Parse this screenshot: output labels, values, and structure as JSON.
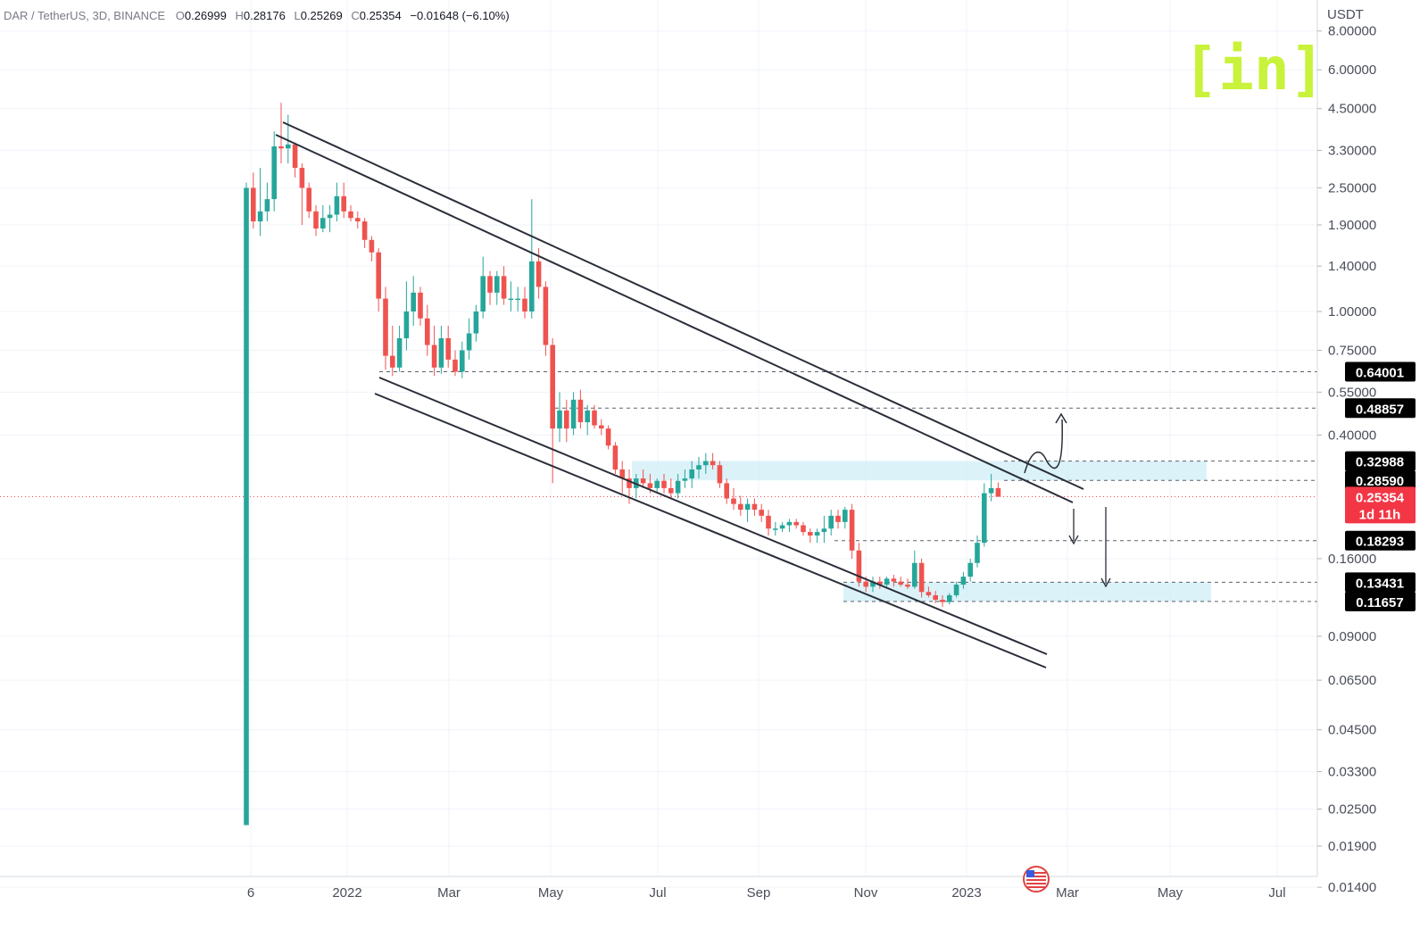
{
  "header": {
    "symbol": "DAR / TetherUS, 3D, BINANCE",
    "o_label": "O",
    "o_value": "0.26999",
    "h_label": "H",
    "h_value": "0.28176",
    "l_label": "L",
    "l_value": "0.25269",
    "c_label": "C",
    "c_value": "0.25354",
    "change": "−0.01648 (−6.10%)"
  },
  "axis": {
    "currency": "USDT"
  },
  "logo": {
    "text": "[in]",
    "color": "#c9f23a"
  },
  "colors": {
    "up": "#26a69a",
    "down": "#ef5350",
    "zone": "#cfeef7",
    "last_price": "#f23645",
    "tag": "#000000"
  },
  "event_icon": "us-flag-event-icon",
  "chart_data": {
    "type": "candlestick",
    "scale": "log",
    "ylim": [
      0.013,
      10
    ],
    "y_ticks": [
      "8.00000",
      "6.00000",
      "4.50000",
      "3.30000",
      "2.50000",
      "1.90000",
      "1.40000",
      "1.00000",
      "0.75000",
      "0.55000",
      "0.40000",
      "0.16000",
      "0.09000",
      "0.06500",
      "0.04500",
      "0.03300",
      "0.02500",
      "0.01900",
      "0.01400"
    ],
    "x_ticks": [
      "6",
      "2022",
      "Mar",
      "May",
      "Jul",
      "Sep",
      "Nov",
      "2023",
      "Mar",
      "May",
      "Jul"
    ],
    "price_tags": [
      {
        "label": "0.64001",
        "value": 0.64001
      },
      {
        "label": "0.48857",
        "value": 0.48857
      },
      {
        "label": "0.32988",
        "value": 0.32988
      },
      {
        "label": "0.28590",
        "value": 0.2859
      },
      {
        "label": "0.18293",
        "value": 0.18293
      },
      {
        "label": "0.13431",
        "value": 0.13431
      },
      {
        "label": "0.11657",
        "value": 0.11657
      }
    ],
    "last_price": {
      "label": "0.25354",
      "countdown": "1d 11h",
      "value": 0.25354
    },
    "candles": [
      {
        "t": 0,
        "o": 0.0222,
        "h": 2.6,
        "l": 0.0222,
        "c": 2.5
      },
      {
        "t": 1,
        "o": 2.5,
        "h": 2.8,
        "l": 1.85,
        "c": 1.95
      },
      {
        "t": 2,
        "o": 1.95,
        "h": 2.9,
        "l": 1.75,
        "c": 2.1
      },
      {
        "t": 3,
        "o": 2.1,
        "h": 2.6,
        "l": 1.95,
        "c": 2.3
      },
      {
        "t": 4,
        "o": 2.3,
        "h": 3.8,
        "l": 2.1,
        "c": 3.4
      },
      {
        "t": 5,
        "o": 3.4,
        "h": 4.7,
        "l": 3.0,
        "c": 3.35
      },
      {
        "t": 6,
        "o": 3.35,
        "h": 4.3,
        "l": 3.0,
        "c": 3.45
      },
      {
        "t": 7,
        "o": 3.45,
        "h": 3.5,
        "l": 2.7,
        "c": 2.9
      },
      {
        "t": 8,
        "o": 2.9,
        "h": 3.0,
        "l": 1.9,
        "c": 2.5
      },
      {
        "t": 9,
        "o": 2.5,
        "h": 2.6,
        "l": 2.0,
        "c": 2.1
      },
      {
        "t": 10,
        "o": 2.1,
        "h": 2.2,
        "l": 1.75,
        "c": 1.85
      },
      {
        "t": 11,
        "o": 1.85,
        "h": 2.2,
        "l": 1.8,
        "c": 2.0
      },
      {
        "t": 12,
        "o": 2.0,
        "h": 2.2,
        "l": 1.8,
        "c": 2.05
      },
      {
        "t": 13,
        "o": 2.05,
        "h": 2.6,
        "l": 1.95,
        "c": 2.35
      },
      {
        "t": 14,
        "o": 2.35,
        "h": 2.6,
        "l": 2.0,
        "c": 2.1
      },
      {
        "t": 15,
        "o": 2.1,
        "h": 2.2,
        "l": 1.95,
        "c": 2.0
      },
      {
        "t": 16,
        "o": 2.0,
        "h": 2.1,
        "l": 1.85,
        "c": 1.95
      },
      {
        "t": 17,
        "o": 1.95,
        "h": 2.0,
        "l": 1.6,
        "c": 1.7
      },
      {
        "t": 18,
        "o": 1.7,
        "h": 1.75,
        "l": 1.45,
        "c": 1.55
      },
      {
        "t": 19,
        "o": 1.55,
        "h": 1.6,
        "l": 1.0,
        "c": 1.1
      },
      {
        "t": 20,
        "o": 1.1,
        "h": 1.2,
        "l": 0.65,
        "c": 0.72
      },
      {
        "t": 21,
        "o": 0.72,
        "h": 0.9,
        "l": 0.62,
        "c": 0.66
      },
      {
        "t": 22,
        "o": 0.66,
        "h": 0.9,
        "l": 0.64,
        "c": 0.82
      },
      {
        "t": 23,
        "o": 0.82,
        "h": 1.25,
        "l": 0.75,
        "c": 1.0
      },
      {
        "t": 24,
        "o": 1.0,
        "h": 1.3,
        "l": 0.9,
        "c": 1.15
      },
      {
        "t": 25,
        "o": 1.15,
        "h": 1.2,
        "l": 0.9,
        "c": 0.95
      },
      {
        "t": 26,
        "o": 0.95,
        "h": 1.05,
        "l": 0.72,
        "c": 0.78
      },
      {
        "t": 27,
        "o": 0.78,
        "h": 0.9,
        "l": 0.62,
        "c": 0.66
      },
      {
        "t": 28,
        "o": 0.66,
        "h": 0.9,
        "l": 0.63,
        "c": 0.82
      },
      {
        "t": 29,
        "o": 0.82,
        "h": 0.9,
        "l": 0.66,
        "c": 0.7
      },
      {
        "t": 30,
        "o": 0.7,
        "h": 0.75,
        "l": 0.62,
        "c": 0.64
      },
      {
        "t": 31,
        "o": 0.64,
        "h": 0.8,
        "l": 0.61,
        "c": 0.75
      },
      {
        "t": 32,
        "o": 0.75,
        "h": 0.95,
        "l": 0.7,
        "c": 0.85
      },
      {
        "t": 33,
        "o": 0.85,
        "h": 1.05,
        "l": 0.8,
        "c": 1.0
      },
      {
        "t": 34,
        "o": 1.0,
        "h": 1.5,
        "l": 0.95,
        "c": 1.3
      },
      {
        "t": 35,
        "o": 1.3,
        "h": 1.35,
        "l": 1.05,
        "c": 1.15
      },
      {
        "t": 36,
        "o": 1.15,
        "h": 1.35,
        "l": 1.05,
        "c": 1.3
      },
      {
        "t": 37,
        "o": 1.3,
        "h": 1.4,
        "l": 1.05,
        "c": 1.1
      },
      {
        "t": 38,
        "o": 1.1,
        "h": 1.25,
        "l": 1.0,
        "c": 1.1
      },
      {
        "t": 39,
        "o": 1.1,
        "h": 1.2,
        "l": 1.0,
        "c": 1.1
      },
      {
        "t": 40,
        "o": 1.1,
        "h": 1.2,
        "l": 0.95,
        "c": 1.0
      },
      {
        "t": 41,
        "o": 1.0,
        "h": 2.3,
        "l": 0.95,
        "c": 1.45
      },
      {
        "t": 42,
        "o": 1.45,
        "h": 1.6,
        "l": 1.1,
        "c": 1.2
      },
      {
        "t": 43,
        "o": 1.2,
        "h": 1.25,
        "l": 0.72,
        "c": 0.78
      },
      {
        "t": 44,
        "o": 0.78,
        "h": 0.82,
        "l": 0.28,
        "c": 0.42
      },
      {
        "t": 45,
        "o": 0.42,
        "h": 0.55,
        "l": 0.38,
        "c": 0.48
      },
      {
        "t": 46,
        "o": 0.48,
        "h": 0.52,
        "l": 0.38,
        "c": 0.42
      },
      {
        "t": 47,
        "o": 0.42,
        "h": 0.55,
        "l": 0.4,
        "c": 0.52
      },
      {
        "t": 48,
        "o": 0.52,
        "h": 0.56,
        "l": 0.42,
        "c": 0.44
      },
      {
        "t": 49,
        "o": 0.44,
        "h": 0.5,
        "l": 0.4,
        "c": 0.48
      },
      {
        "t": 50,
        "o": 0.48,
        "h": 0.5,
        "l": 0.42,
        "c": 0.43
      },
      {
        "t": 51,
        "o": 0.43,
        "h": 0.45,
        "l": 0.4,
        "c": 0.42
      },
      {
        "t": 52,
        "o": 0.42,
        "h": 0.43,
        "l": 0.36,
        "c": 0.37
      },
      {
        "t": 53,
        "o": 0.37,
        "h": 0.38,
        "l": 0.3,
        "c": 0.31
      },
      {
        "t": 54,
        "o": 0.31,
        "h": 0.33,
        "l": 0.26,
        "c": 0.29
      },
      {
        "t": 55,
        "o": 0.29,
        "h": 0.31,
        "l": 0.24,
        "c": 0.27
      },
      {
        "t": 56,
        "o": 0.27,
        "h": 0.3,
        "l": 0.25,
        "c": 0.29
      },
      {
        "t": 57,
        "o": 0.29,
        "h": 0.31,
        "l": 0.27,
        "c": 0.28
      },
      {
        "t": 58,
        "o": 0.28,
        "h": 0.3,
        "l": 0.26,
        "c": 0.27
      },
      {
        "t": 59,
        "o": 0.27,
        "h": 0.29,
        "l": 0.26,
        "c": 0.285
      },
      {
        "t": 60,
        "o": 0.285,
        "h": 0.3,
        "l": 0.26,
        "c": 0.27
      },
      {
        "t": 61,
        "o": 0.27,
        "h": 0.29,
        "l": 0.25,
        "c": 0.26
      },
      {
        "t": 62,
        "o": 0.26,
        "h": 0.3,
        "l": 0.25,
        "c": 0.285
      },
      {
        "t": 63,
        "o": 0.285,
        "h": 0.31,
        "l": 0.27,
        "c": 0.29
      },
      {
        "t": 64,
        "o": 0.29,
        "h": 0.33,
        "l": 0.27,
        "c": 0.31
      },
      {
        "t": 65,
        "o": 0.31,
        "h": 0.34,
        "l": 0.29,
        "c": 0.32
      },
      {
        "t": 66,
        "o": 0.32,
        "h": 0.35,
        "l": 0.3,
        "c": 0.33
      },
      {
        "t": 67,
        "o": 0.33,
        "h": 0.35,
        "l": 0.31,
        "c": 0.32
      },
      {
        "t": 68,
        "o": 0.32,
        "h": 0.33,
        "l": 0.27,
        "c": 0.28
      },
      {
        "t": 69,
        "o": 0.28,
        "h": 0.29,
        "l": 0.24,
        "c": 0.25
      },
      {
        "t": 70,
        "o": 0.25,
        "h": 0.27,
        "l": 0.23,
        "c": 0.24
      },
      {
        "t": 71,
        "o": 0.24,
        "h": 0.255,
        "l": 0.22,
        "c": 0.23
      },
      {
        "t": 72,
        "o": 0.23,
        "h": 0.25,
        "l": 0.21,
        "c": 0.24
      },
      {
        "t": 73,
        "o": 0.24,
        "h": 0.25,
        "l": 0.22,
        "c": 0.23
      },
      {
        "t": 74,
        "o": 0.23,
        "h": 0.24,
        "l": 0.21,
        "c": 0.22
      },
      {
        "t": 75,
        "o": 0.22,
        "h": 0.23,
        "l": 0.19,
        "c": 0.2
      },
      {
        "t": 76,
        "o": 0.2,
        "h": 0.21,
        "l": 0.19,
        "c": 0.2
      },
      {
        "t": 77,
        "o": 0.2,
        "h": 0.21,
        "l": 0.195,
        "c": 0.205
      },
      {
        "t": 78,
        "o": 0.205,
        "h": 0.215,
        "l": 0.195,
        "c": 0.21
      },
      {
        "t": 79,
        "o": 0.21,
        "h": 0.215,
        "l": 0.2,
        "c": 0.205
      },
      {
        "t": 80,
        "o": 0.205,
        "h": 0.21,
        "l": 0.19,
        "c": 0.195
      },
      {
        "t": 81,
        "o": 0.195,
        "h": 0.2,
        "l": 0.18,
        "c": 0.19
      },
      {
        "t": 82,
        "o": 0.19,
        "h": 0.2,
        "l": 0.18,
        "c": 0.195
      },
      {
        "t": 83,
        "o": 0.195,
        "h": 0.22,
        "l": 0.18,
        "c": 0.2
      },
      {
        "t": 84,
        "o": 0.2,
        "h": 0.23,
        "l": 0.19,
        "c": 0.22
      },
      {
        "t": 85,
        "o": 0.22,
        "h": 0.23,
        "l": 0.2,
        "c": 0.21
      },
      {
        "t": 86,
        "o": 0.21,
        "h": 0.235,
        "l": 0.2,
        "c": 0.23
      },
      {
        "t": 87,
        "o": 0.23,
        "h": 0.24,
        "l": 0.16,
        "c": 0.17
      },
      {
        "t": 88,
        "o": 0.17,
        "h": 0.18,
        "l": 0.13,
        "c": 0.135
      },
      {
        "t": 89,
        "o": 0.135,
        "h": 0.14,
        "l": 0.125,
        "c": 0.13
      },
      {
        "t": 90,
        "o": 0.13,
        "h": 0.14,
        "l": 0.125,
        "c": 0.135
      },
      {
        "t": 91,
        "o": 0.135,
        "h": 0.14,
        "l": 0.128,
        "c": 0.132
      },
      {
        "t": 92,
        "o": 0.132,
        "h": 0.14,
        "l": 0.13,
        "c": 0.138
      },
      {
        "t": 93,
        "o": 0.138,
        "h": 0.142,
        "l": 0.13,
        "c": 0.135
      },
      {
        "t": 94,
        "o": 0.135,
        "h": 0.14,
        "l": 0.13,
        "c": 0.132
      },
      {
        "t": 95,
        "o": 0.132,
        "h": 0.138,
        "l": 0.128,
        "c": 0.13
      },
      {
        "t": 96,
        "o": 0.13,
        "h": 0.17,
        "l": 0.128,
        "c": 0.155
      },
      {
        "t": 97,
        "o": 0.155,
        "h": 0.16,
        "l": 0.12,
        "c": 0.125
      },
      {
        "t": 98,
        "o": 0.125,
        "h": 0.13,
        "l": 0.12,
        "c": 0.122
      },
      {
        "t": 99,
        "o": 0.122,
        "h": 0.126,
        "l": 0.115,
        "c": 0.118
      },
      {
        "t": 100,
        "o": 0.118,
        "h": 0.122,
        "l": 0.112,
        "c": 0.116
      },
      {
        "t": 101,
        "o": 0.116,
        "h": 0.124,
        "l": 0.114,
        "c": 0.122
      },
      {
        "t": 102,
        "o": 0.122,
        "h": 0.135,
        "l": 0.12,
        "c": 0.132
      },
      {
        "t": 103,
        "o": 0.132,
        "h": 0.145,
        "l": 0.128,
        "c": 0.14
      },
      {
        "t": 104,
        "o": 0.14,
        "h": 0.16,
        "l": 0.135,
        "c": 0.155
      },
      {
        "t": 105,
        "o": 0.155,
        "h": 0.19,
        "l": 0.15,
        "c": 0.18
      },
      {
        "t": 106,
        "o": 0.18,
        "h": 0.28,
        "l": 0.175,
        "c": 0.26
      },
      {
        "t": 107,
        "o": 0.26,
        "h": 0.3,
        "l": 0.245,
        "c": 0.27
      },
      {
        "t": 108,
        "o": 0.27,
        "h": 0.28176,
        "l": 0.25269,
        "c": 0.25354
      }
    ]
  }
}
